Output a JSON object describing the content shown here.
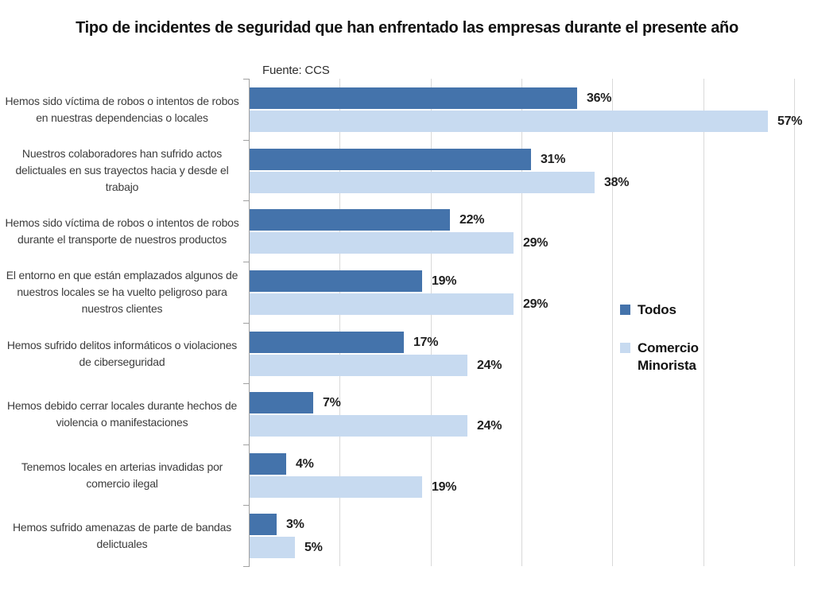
{
  "chart_data": {
    "type": "bar",
    "orientation": "horizontal",
    "title": "Tipo de incidentes de seguridad que han enfrentado las empresas durante el presente año",
    "source": "Fuente: CCS",
    "categories": [
      "Hemos sido víctima de robos o intentos de robos en nuestras dependencias o locales",
      "Nuestros colaboradores han sufrido actos delictuales en sus trayectos hacia y desde el trabajo",
      "Hemos sido víctima de robos o intentos de robos durante el transporte de nuestros productos",
      "El entorno en que están emplazados algunos de nuestros locales se ha vuelto peligroso para nuestros clientes",
      "Hemos sufrido delitos informáticos o violaciones de ciberseguridad",
      "Hemos debido cerrar locales durante hechos de violencia o manifestaciones",
      "Tenemos locales en arterias invadidas por comercio ilegal",
      "Hemos sufrido amenazas de parte de bandas delictuales"
    ],
    "series": [
      {
        "name": "Todos",
        "color": "#4473AB",
        "values": [
          36,
          31,
          22,
          19,
          17,
          7,
          4,
          3
        ]
      },
      {
        "name": "Comercio Minorista",
        "color": "#C7DAF0",
        "values": [
          57,
          38,
          29,
          29,
          24,
          24,
          19,
          5
        ]
      }
    ],
    "value_suffix": "%",
    "xlim": [
      0,
      60
    ],
    "gridline_step": 10,
    "grid": true,
    "legend_position": "middle-right",
    "colors": {
      "grid": "#D9D9D9",
      "axis": "#A0A0A0",
      "category_text": "#3C3C3C",
      "value_text": "#1F1F1F",
      "title_text": "#121212"
    }
  }
}
